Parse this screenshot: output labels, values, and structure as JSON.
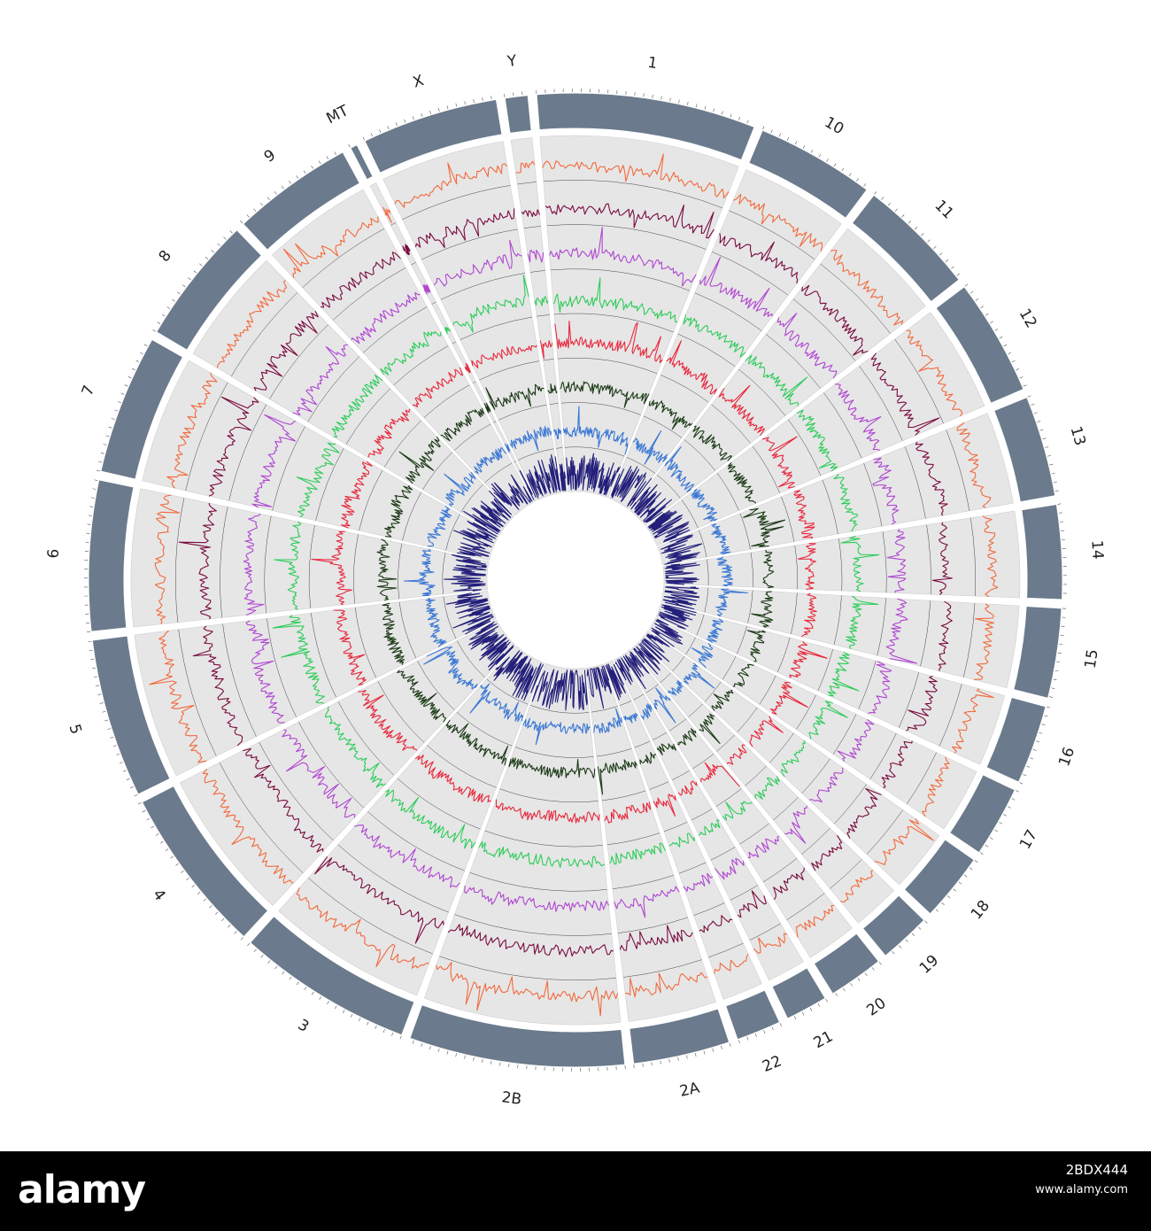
{
  "diagram": {
    "type": "circos-genome-plot",
    "chromosomes": [
      {
        "name": "1",
        "size": 249
      },
      {
        "name": "10",
        "size": 135
      },
      {
        "name": "11",
        "size": 135
      },
      {
        "name": "12",
        "size": 133
      },
      {
        "name": "13",
        "size": 115
      },
      {
        "name": "14",
        "size": 107
      },
      {
        "name": "15",
        "size": 102
      },
      {
        "name": "16",
        "size": 90
      },
      {
        "name": "17",
        "size": 81
      },
      {
        "name": "18",
        "size": 78
      },
      {
        "name": "19",
        "size": 59
      },
      {
        "name": "20",
        "size": 63
      },
      {
        "name": "21",
        "size": 48
      },
      {
        "name": "22",
        "size": 51
      },
      {
        "name": "2A",
        "size": 110
      },
      {
        "name": "2B",
        "size": 245
      },
      {
        "name": "3",
        "size": 200
      },
      {
        "name": "4",
        "size": 190
      },
      {
        "name": "5",
        "size": 181
      },
      {
        "name": "6",
        "size": 171
      },
      {
        "name": "7",
        "size": 159
      },
      {
        "name": "8",
        "size": 146
      },
      {
        "name": "9",
        "size": 138
      },
      {
        "name": "MT",
        "size": 1
      },
      {
        "name": "X",
        "size": 155
      },
      {
        "name": "Y",
        "size": 26
      }
    ],
    "tracks": [
      {
        "color": "#f26a3d"
      },
      {
        "color": "#7a0b3e"
      },
      {
        "color": "#b046d1"
      },
      {
        "color": "#2ecc5a"
      },
      {
        "color": "#e8283c"
      },
      {
        "color": "#1c3a17"
      },
      {
        "color": "#3b78d4"
      },
      {
        "color": "#231f7a"
      }
    ],
    "colors": {
      "ideogram": "#6b7a8c",
      "track_background": "#e6e6e6",
      "divider": "#444444"
    }
  },
  "footer": {
    "logo": "alamy",
    "image_code": "2BDX444",
    "meta_lines": [
      "www.alamy.com"
    ]
  }
}
